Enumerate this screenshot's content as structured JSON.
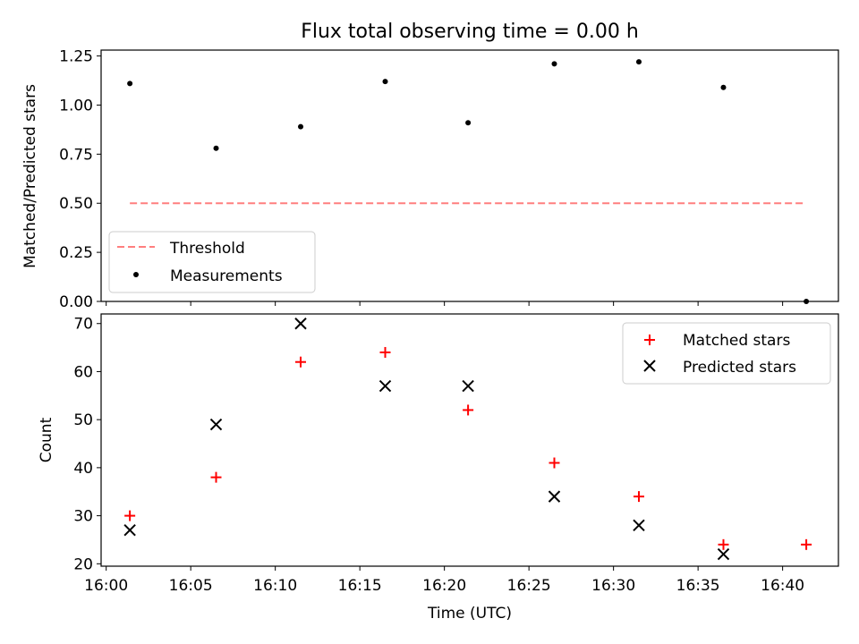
{
  "figure_title": "Flux total observing time = 0.00 h",
  "colors": {
    "axis": "#000000",
    "threshold": "#ff7f7f",
    "measurement": "#000000",
    "matched": "#ff0000",
    "predicted": "#000000"
  },
  "chart_data": [
    {
      "type": "scatter",
      "title": "Flux total observing time = 0.00 h",
      "xlabel": "",
      "ylabel": "Matched/Predicted stars",
      "xlim_minutes": [
        -0.3,
        43.3
      ],
      "ylim": [
        0,
        1.28
      ],
      "yticks": [
        0,
        0.25,
        0.5,
        0.75,
        1.0,
        1.25
      ],
      "ytick_labels": [
        "0.00",
        "0.25",
        "0.50",
        "0.75",
        "1.00",
        "1.25"
      ],
      "legend_position": "lower-left",
      "series": [
        {
          "name": "Threshold",
          "kind": "dashed-line",
          "x_minutes": [
            1.4,
            41.4
          ],
          "values": [
            0.5,
            0.5
          ]
        },
        {
          "name": "Measurements",
          "kind": "dot",
          "x_minutes": [
            1.4,
            6.5,
            11.5,
            16.5,
            21.4,
            26.5,
            31.5,
            36.5,
            41.4
          ],
          "values": [
            1.11,
            0.78,
            0.89,
            1.12,
            0.91,
            1.21,
            1.22,
            1.09,
            0.0
          ]
        }
      ]
    },
    {
      "type": "scatter",
      "title": "",
      "xlabel": "Time (UTC)",
      "ylabel": "Count",
      "xlim_minutes": [
        -0.3,
        43.3
      ],
      "xticks_minutes": [
        0,
        5,
        10,
        15,
        20,
        25,
        30,
        35,
        40
      ],
      "xtick_labels": [
        "16:00",
        "16:05",
        "16:10",
        "16:15",
        "16:20",
        "16:25",
        "16:30",
        "16:35",
        "16:40"
      ],
      "ylim": [
        19.5,
        72
      ],
      "yticks": [
        20,
        30,
        40,
        50,
        60,
        70
      ],
      "ytick_labels": [
        "20",
        "30",
        "40",
        "50",
        "60",
        "70"
      ],
      "legend_position": "upper-right",
      "series": [
        {
          "name": "Matched stars",
          "kind": "plus",
          "x_minutes": [
            1.4,
            6.5,
            11.5,
            16.5,
            21.4,
            26.5,
            31.5,
            36.5,
            41.4
          ],
          "values": [
            30,
            38,
            62,
            64,
            52,
            41,
            34,
            24,
            24
          ]
        },
        {
          "name": "Predicted stars",
          "kind": "cross",
          "x_minutes": [
            1.4,
            6.5,
            11.5,
            16.5,
            21.4,
            26.5,
            31.5,
            36.5
          ],
          "values": [
            27,
            49,
            70,
            57,
            57,
            34,
            28,
            22
          ]
        }
      ]
    }
  ]
}
